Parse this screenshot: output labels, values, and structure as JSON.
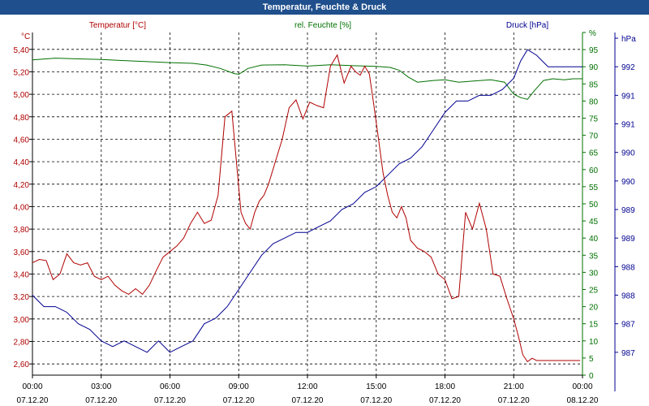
{
  "window": {
    "title": "Temperatur, Feuchte & Druck"
  },
  "chart_data": {
    "type": "line",
    "title": "Temperatur, Feuchte & Druck",
    "colors": {
      "temperature": "#b00000",
      "humidity": "#007000",
      "pressure": "#000090",
      "grid": "#000000",
      "title_bg": "#1f4f8c"
    },
    "series_labels": {
      "temperature": "Temperatur [°C]",
      "humidity": "rel. Feuchte [%]",
      "pressure": "Druck [hPa]"
    },
    "axes": {
      "temperature": {
        "unit": "°C",
        "min": 2.5,
        "max": 5.55,
        "ticks": [
          2.6,
          2.8,
          3.0,
          3.2,
          3.4,
          3.6,
          3.8,
          4.0,
          4.2,
          4.4,
          4.6,
          4.8,
          5.0,
          5.2,
          5.4
        ],
        "tick_labels": [
          "2,60",
          "2,80",
          "3,00",
          "3,20",
          "3,40",
          "3,60",
          "3,80",
          "4,00",
          "4,20",
          "4,40",
          "4,60",
          "4,80",
          "5,00",
          "5,20",
          "5,40"
        ]
      },
      "humidity": {
        "unit": "%",
        "min": 0,
        "max": 100,
        "ticks": [
          0,
          5,
          10,
          15,
          20,
          25,
          30,
          35,
          40,
          45,
          50,
          55,
          60,
          65,
          70,
          75,
          80,
          85,
          90,
          95,
          100
        ],
        "tick_labels": [
          "0",
          "5",
          "10",
          "15",
          "20",
          "25",
          "30",
          "35",
          "40",
          "45",
          "50",
          "55",
          "60",
          "65",
          "70",
          "75",
          "80",
          "85",
          "90",
          "95",
          "%"
        ]
      },
      "pressure": {
        "unit": "hPa",
        "min": 986.6,
        "max": 992.6,
        "ticks": [
          987,
          987.5,
          988,
          988.5,
          989,
          989.5,
          990,
          990.5,
          991,
          991.5,
          992,
          992.5
        ],
        "tick_labels": [
          "987",
          "987",
          "988",
          "988",
          "989",
          "989",
          "990",
          "990",
          "991",
          "991",
          "992",
          "hPa"
        ]
      },
      "x": {
        "min": 0,
        "max": 24,
        "ticks": [
          0,
          3,
          6,
          9,
          12,
          15,
          18,
          21,
          24
        ],
        "time_labels": [
          "00:00",
          "03:00",
          "06:00",
          "09:00",
          "12:00",
          "15:00",
          "18:00",
          "21:00",
          "00:00"
        ],
        "date_labels": [
          "07.12.20",
          "07.12.20",
          "07.12.20",
          "07.12.20",
          "07.12.20",
          "07.12.20",
          "07.12.20",
          "07.12.20",
          "08.12.20"
        ]
      }
    },
    "temperature": {
      "x": [
        0,
        0.3,
        0.6,
        0.9,
        1.2,
        1.5,
        1.8,
        2.1,
        2.4,
        2.7,
        3.0,
        3.3,
        3.6,
        3.9,
        4.2,
        4.5,
        4.8,
        5.1,
        5.4,
        5.7,
        6.0,
        6.3,
        6.6,
        6.9,
        7.2,
        7.5,
        7.8,
        8.1,
        8.4,
        8.7,
        8.9,
        9.1,
        9.3,
        9.5,
        9.7,
        9.9,
        10.1,
        10.3,
        10.6,
        10.9,
        11.2,
        11.5,
        11.8,
        12.1,
        12.4,
        12.7,
        13.0,
        13.3,
        13.6,
        13.9,
        14.1,
        14.3,
        14.5,
        14.7,
        14.9,
        15.1,
        15.3,
        15.5,
        15.7,
        15.9,
        16.1,
        16.3,
        16.5,
        16.8,
        17.1,
        17.4,
        17.7,
        18.0,
        18.3,
        18.6,
        18.9,
        19.2,
        19.5,
        19.8,
        20.1,
        20.4,
        20.7,
        21.0,
        21.2,
        21.4,
        21.6,
        21.8,
        22.0,
        22.2,
        22.4,
        22.7,
        23.0,
        23.3,
        23.6,
        23.9
      ],
      "values": [
        3.5,
        3.53,
        3.52,
        3.35,
        3.4,
        3.58,
        3.5,
        3.48,
        3.5,
        3.38,
        3.35,
        3.38,
        3.3,
        3.25,
        3.22,
        3.27,
        3.22,
        3.3,
        3.43,
        3.55,
        3.6,
        3.65,
        3.72,
        3.85,
        3.95,
        3.85,
        3.88,
        4.1,
        4.8,
        4.85,
        4.4,
        3.95,
        3.85,
        3.8,
        3.95,
        4.05,
        4.1,
        4.2,
        4.4,
        4.6,
        4.88,
        4.95,
        4.78,
        4.93,
        4.9,
        4.88,
        5.25,
        5.35,
        5.1,
        5.25,
        5.2,
        5.17,
        5.25,
        5.18,
        4.9,
        4.6,
        4.3,
        4.1,
        3.95,
        3.9,
        4.0,
        3.9,
        3.7,
        3.63,
        3.6,
        3.55,
        3.4,
        3.35,
        3.18,
        3.2,
        3.95,
        3.8,
        4.03,
        3.8,
        3.4,
        3.38,
        3.18,
        3.0,
        2.85,
        2.68,
        2.62,
        2.65,
        2.63,
        2.63,
        2.63,
        2.63,
        2.63,
        2.63,
        2.63,
        2.63
      ]
    },
    "humidity": {
      "x": [
        0,
        1,
        2,
        3,
        4,
        5,
        6,
        7,
        7.6,
        8.2,
        8.8,
        9.0,
        9.4,
        10,
        11,
        12,
        13,
        14,
        15,
        15.6,
        16.0,
        16.4,
        16.8,
        17.5,
        18,
        18.6,
        19.2,
        20,
        20.6,
        21.0,
        21.3,
        21.6,
        21.9,
        22.3,
        22.7,
        23.2,
        23.6,
        24
      ],
      "values": [
        92,
        92.5,
        92.3,
        92.1,
        91.8,
        91.5,
        91.2,
        91,
        90.5,
        89.5,
        88,
        87.8,
        89.5,
        90.5,
        90.6,
        90.2,
        90.6,
        90.3,
        90.1,
        89.8,
        89,
        87,
        85.5,
        86,
        86.2,
        85.5,
        85.8,
        86.2,
        85.5,
        82,
        81,
        80.5,
        83,
        86,
        86.5,
        86.2,
        86.5,
        86.5
      ]
    },
    "pressure": {
      "x": [
        0,
        0.5,
        1,
        1.5,
        2,
        2.5,
        3,
        3.5,
        4,
        4.5,
        5,
        5.5,
        6,
        6.5,
        7,
        7.5,
        8,
        8.5,
        9,
        9.5,
        10,
        10.5,
        11,
        11.5,
        12,
        12.5,
        13,
        13.5,
        14,
        14.5,
        15,
        15.5,
        16,
        16.5,
        17,
        17.5,
        18,
        18.5,
        19,
        19.5,
        20,
        20.5,
        21,
        21.3,
        21.6,
        22,
        22.5,
        23,
        23.5,
        24
      ],
      "values": [
        988.0,
        987.8,
        987.8,
        987.7,
        987.5,
        987.4,
        987.2,
        987.1,
        987.2,
        987.1,
        987.0,
        987.2,
        987.0,
        987.1,
        987.2,
        987.5,
        987.6,
        987.8,
        988.1,
        988.4,
        988.7,
        988.9,
        989.0,
        989.1,
        989.1,
        989.2,
        989.3,
        989.5,
        989.6,
        989.8,
        989.9,
        990.1,
        990.3,
        990.4,
        990.6,
        990.9,
        991.2,
        991.4,
        991.4,
        991.5,
        991.5,
        991.6,
        991.8,
        992.1,
        992.3,
        992.2,
        992.0,
        992.0,
        992.0,
        992.0
      ]
    }
  }
}
